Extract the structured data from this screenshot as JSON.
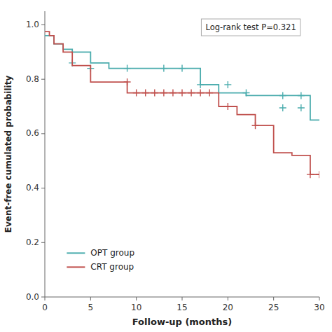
{
  "chart_data": {
    "type": "line",
    "xlabel": "Follow-up (months)",
    "ylabel": "Event-free cumulated probability",
    "xlim": [
      0,
      30
    ],
    "ylim": [
      0.0,
      1.05
    ],
    "xticks": [
      0,
      5,
      10,
      15,
      20,
      25,
      30
    ],
    "yticks": [
      {
        "value": 0.0,
        "label": "0.0"
      },
      0.2,
      0.4,
      0.6,
      0.8,
      {
        "value": 1.0,
        "label": "1.0"
      }
    ],
    "grid": false,
    "legend": "lower left",
    "annotations": [
      "Log-rank test P=0.321"
    ],
    "series": [
      {
        "name": "OPT group",
        "color": "#4aacad",
        "marker": "plus",
        "x": [
          0,
          1,
          1,
          2,
          2,
          3,
          3,
          5,
          5,
          7,
          7,
          9,
          9,
          17,
          17,
          19,
          19,
          22,
          22,
          25,
          25,
          29,
          29,
          30
        ],
        "values": [
          0.96,
          0.96,
          0.93,
          0.93,
          0.91,
          0.91,
          0.9,
          0.9,
          0.86,
          0.86,
          0.84,
          0.84,
          0.84,
          0.84,
          0.78,
          0.78,
          0.75,
          0.75,
          0.74,
          0.74,
          0.74,
          0.74,
          0.65,
          0.65
        ],
        "censor_x": [
          3,
          5,
          9,
          13,
          15,
          17,
          20,
          22,
          26,
          28,
          26,
          28
        ],
        "censor_values": [
          0.86,
          0.84,
          0.84,
          0.84,
          0.84,
          0.78,
          0.78,
          0.75,
          0.74,
          0.74,
          0.695,
          0.695
        ]
      },
      {
        "name": "CRT group",
        "color": "#c0504d",
        "marker": "plus",
        "x": [
          0,
          0.5,
          0.5,
          1,
          1,
          2,
          2,
          3,
          3,
          5,
          5,
          9,
          9,
          19,
          19,
          21,
          21,
          23,
          23,
          25,
          25,
          27,
          27,
          29,
          29,
          30
        ],
        "values": [
          0.975,
          0.975,
          0.96,
          0.96,
          0.93,
          0.93,
          0.9,
          0.9,
          0.85,
          0.85,
          0.79,
          0.79,
          0.75,
          0.75,
          0.7,
          0.7,
          0.67,
          0.67,
          0.63,
          0.63,
          0.53,
          0.53,
          0.52,
          0.52,
          0.45,
          0.45
        ],
        "censor_x": [
          9,
          10,
          11,
          12,
          13,
          14,
          15,
          16,
          17,
          18,
          20,
          23,
          29,
          30
        ],
        "censor_values": [
          0.79,
          0.75,
          0.75,
          0.75,
          0.75,
          0.75,
          0.75,
          0.75,
          0.75,
          0.75,
          0.7,
          0.63,
          0.45,
          0.45
        ]
      }
    ]
  }
}
